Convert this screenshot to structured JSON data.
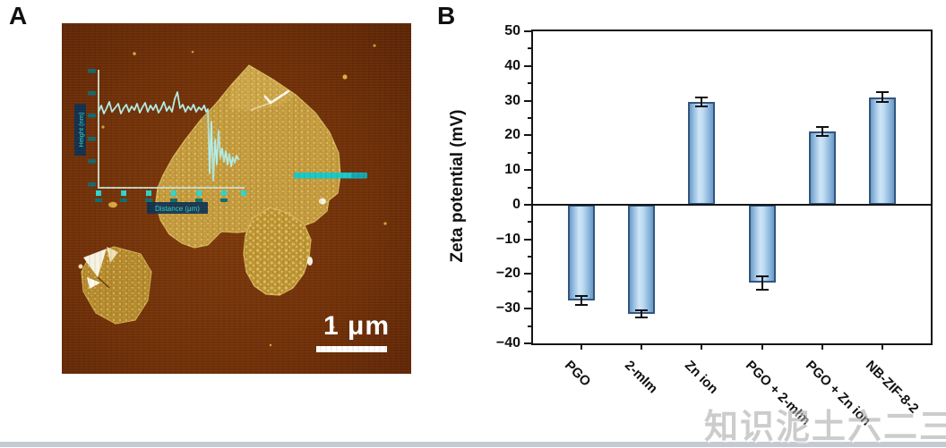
{
  "page": {
    "watermark_text": "知识泥土六二三"
  },
  "panel_a": {
    "label": "A",
    "scale_bar_label": "1 μm",
    "inset": {
      "ylabel": "Height (nm)",
      "xlabel": "Distance (μm)"
    }
  },
  "panel_b": {
    "label": "B"
  },
  "chart_data": {
    "type": "bar",
    "title": "",
    "xlabel": "",
    "ylabel": "Zeta potential (mV)",
    "ylim": [
      -40,
      50
    ],
    "ytick_step": 10,
    "minor_tick_step": 5,
    "yticks": [
      50,
      40,
      30,
      20,
      10,
      0,
      -10,
      -20,
      -30,
      -40
    ],
    "grid": false,
    "legend": false,
    "categories": [
      "PGO",
      "2-mIm",
      "Zn ion",
      "PGO + 2-mIm",
      "PGO + Zn ion",
      "NB-ZIF-8-2"
    ],
    "values": [
      -27.6,
      -31.4,
      29.6,
      -22.5,
      21.1,
      31.0
    ],
    "errors": [
      1.3,
      1.0,
      1.3,
      1.9,
      1.2,
      1.5
    ],
    "bar_fill_light": "#cfe4f6",
    "bar_fill_dark": "#6b9bc8",
    "bar_border": "#33557c",
    "axis_color": "#151515",
    "error_color": "#111111"
  }
}
